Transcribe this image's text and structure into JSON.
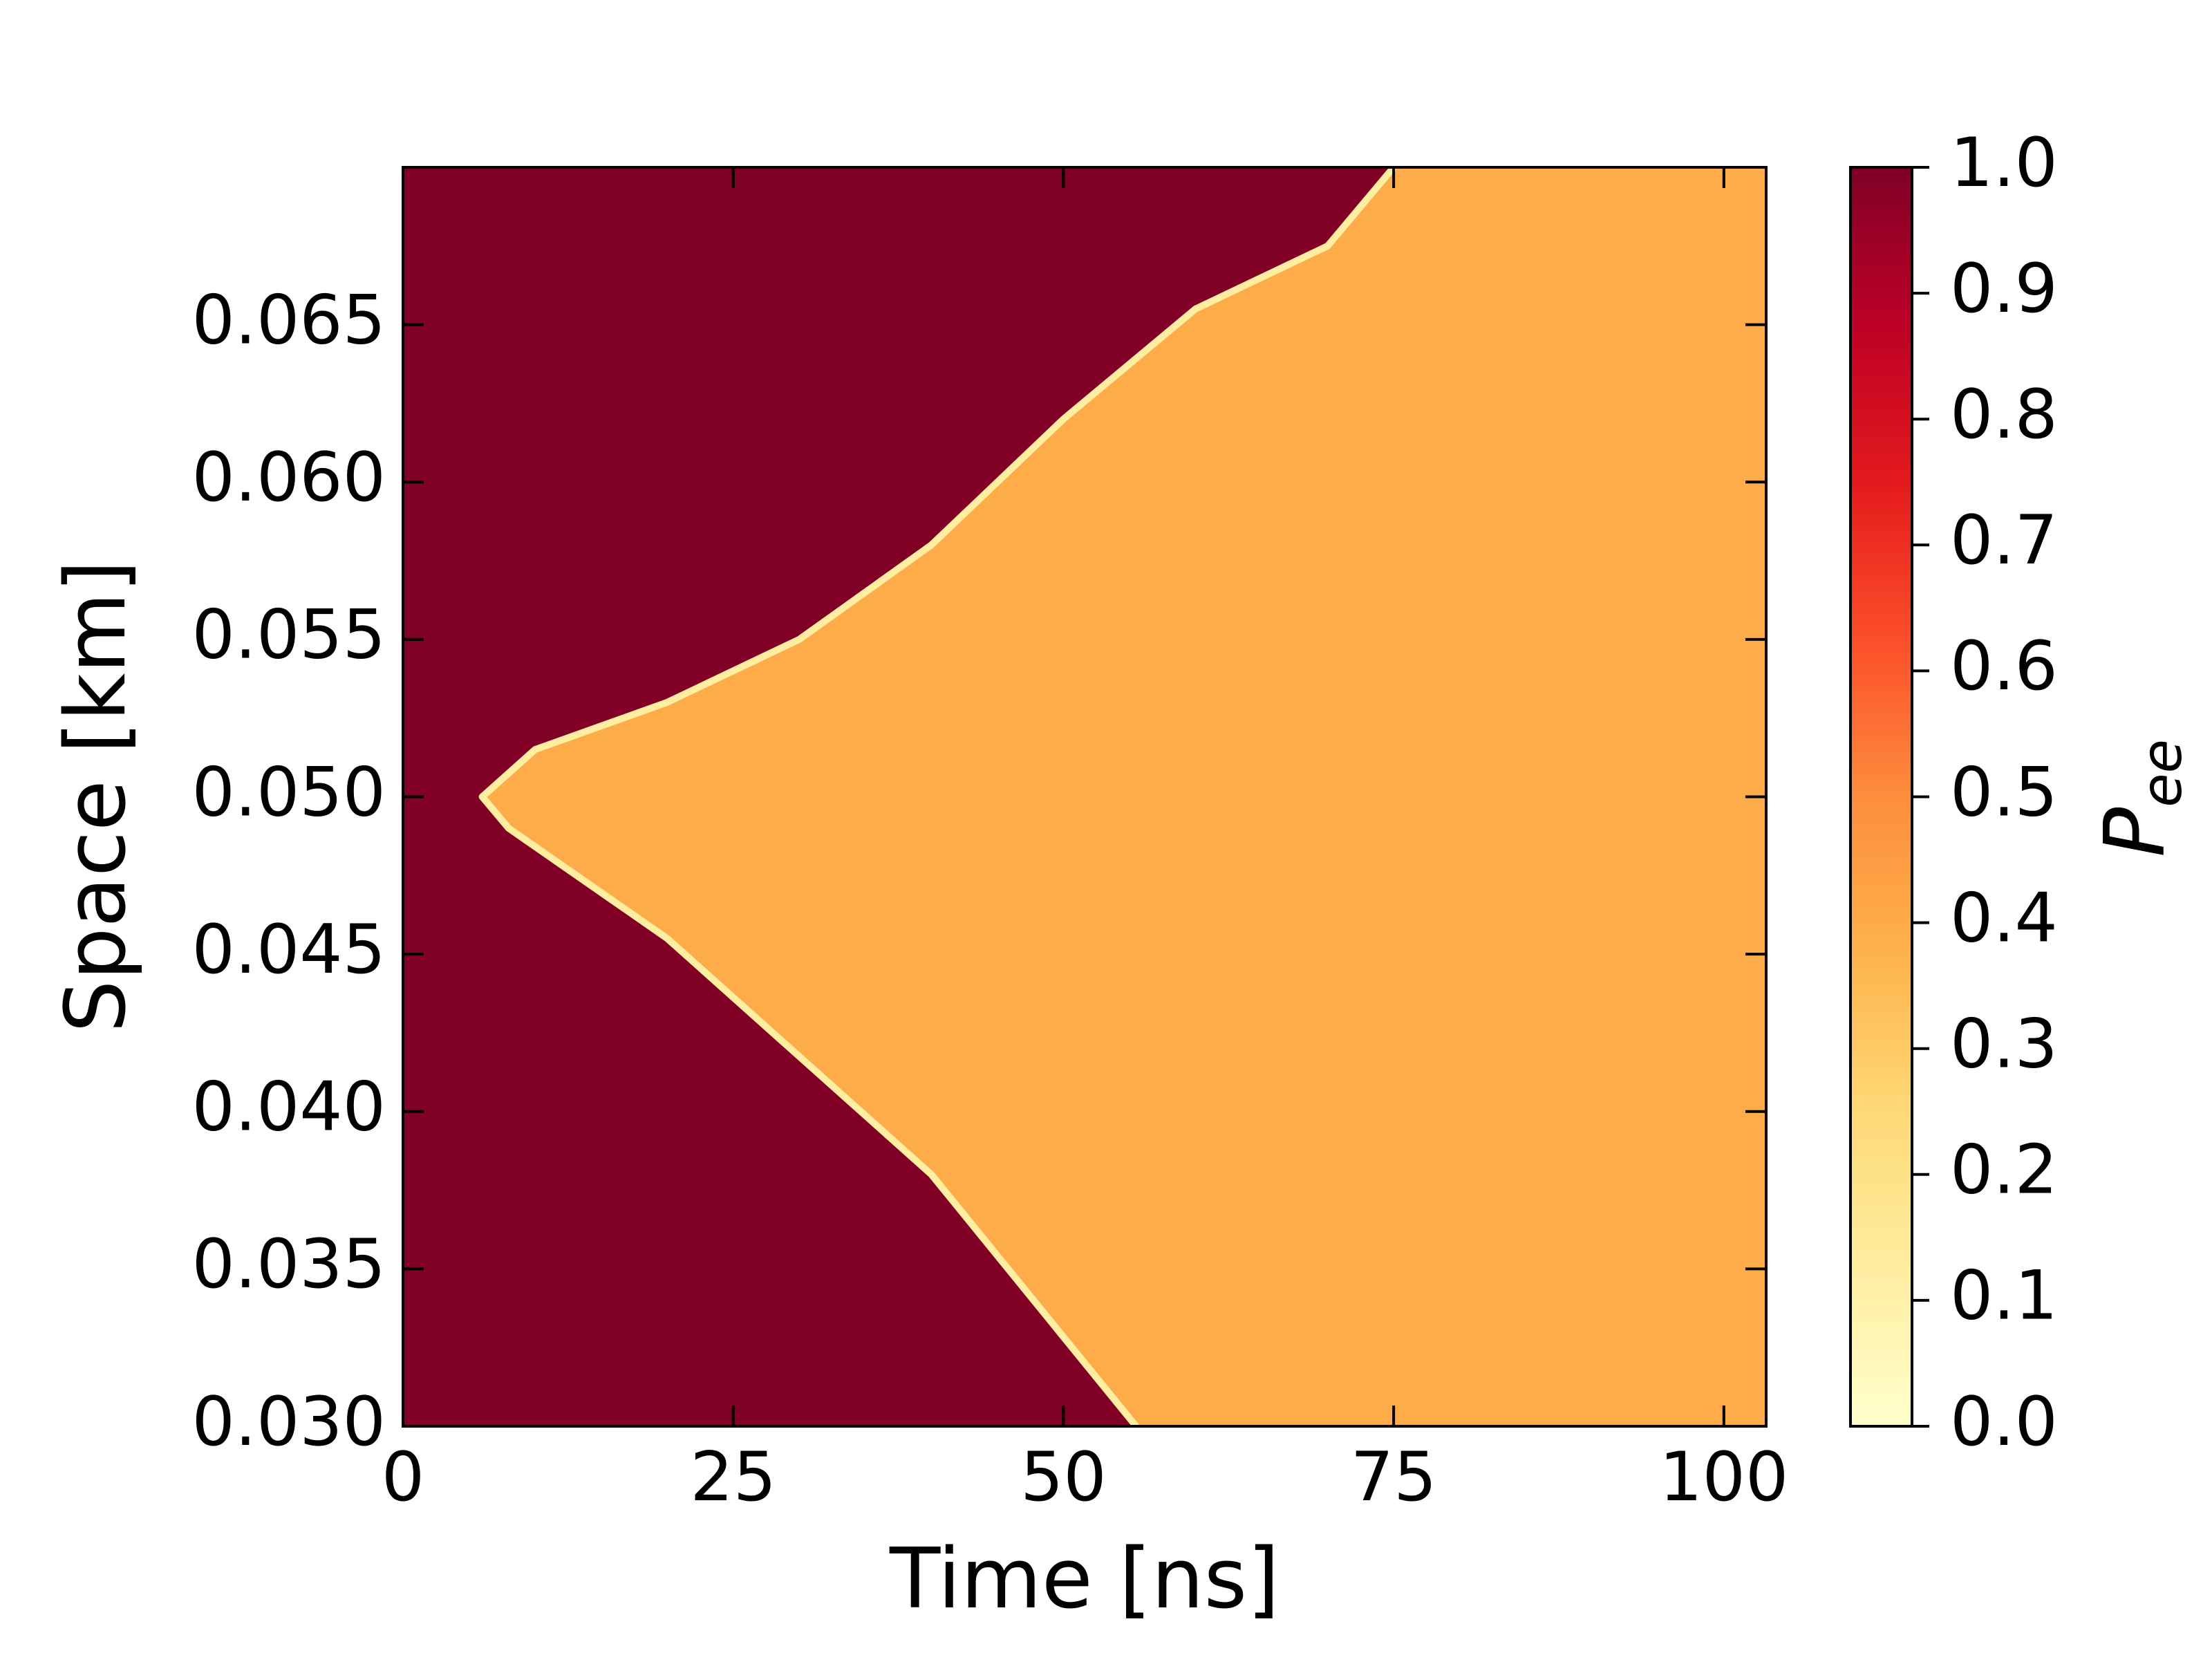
{
  "chart_data": {
    "type": "heatmap",
    "x_label": "Time [ns]",
    "y_label": "Space [km]",
    "xlim": [
      0,
      103.2
    ],
    "ylim": [
      0.03,
      0.07
    ],
    "xticks": [
      0,
      25,
      50,
      75,
      100
    ],
    "yticks": [
      {
        "value": 0.03,
        "label": "0.030"
      },
      0.035,
      {
        "value": 0.04,
        "label": "0.040"
      },
      0.045,
      {
        "value": 0.05,
        "label": "0.050"
      },
      0.055,
      {
        "value": 0.06,
        "label": "0.060"
      },
      0.065
    ],
    "colormap": [
      "#ffffcc",
      "#ffeda0",
      "#fed976",
      "#feb24c",
      "#fd8d3c",
      "#fc4e2a",
      "#e31a1c",
      "#bd0026",
      "#800026"
    ],
    "clim": [
      0,
      1
    ],
    "colorbar_ticks": [
      {
        "value": 0,
        "label": "0.0"
      },
      0.1,
      0.2,
      0.3,
      0.4,
      0.5,
      0.6,
      0.7,
      0.8,
      0.9,
      {
        "value": 1,
        "label": "1.0"
      }
    ],
    "colorbar_label": "P",
    "colorbar_label_sub": "ee",
    "outside_value": 1.0,
    "inside_value": 0.4,
    "boundary": {
      "x": [
        75,
        70,
        60,
        50,
        40,
        30,
        20,
        10,
        6,
        8,
        20,
        40,
        55.5
      ],
      "y": [
        0.07,
        0.0675,
        0.0655,
        0.062,
        0.058,
        0.055,
        0.053,
        0.0515,
        0.05,
        0.049,
        0.0455,
        0.038,
        0.03
      ]
    }
  }
}
